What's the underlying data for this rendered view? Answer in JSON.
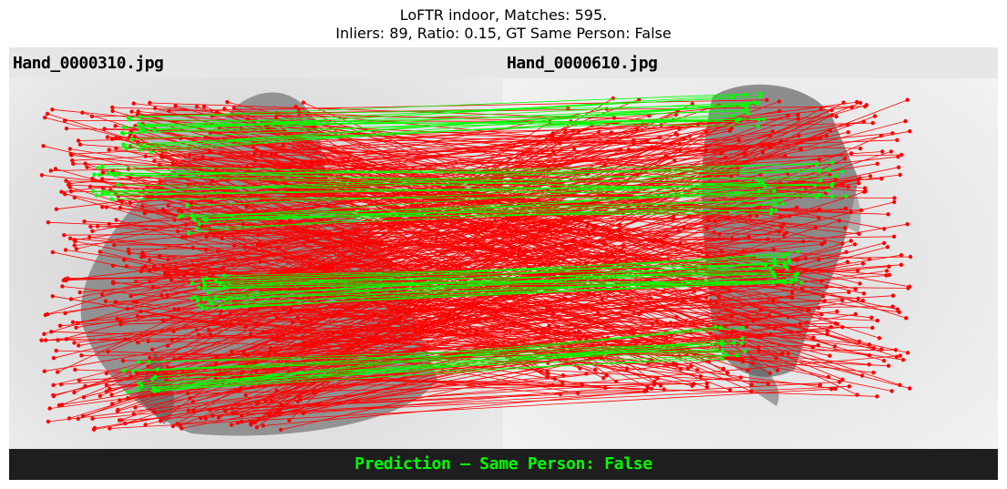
{
  "title_line1": "LoFTR indoor, Matches: 595.",
  "title_line2": "Inliers: 89, Ratio: 0.15, GT Same Person: False",
  "left_image": {
    "filename": "Hand_0000310.jpg"
  },
  "right_image": {
    "filename": "Hand_0000610.jpg"
  },
  "prediction_text": "Prediction — Same Person: False",
  "colors": {
    "outlier": "#ff0000",
    "inlier": "#00ff00",
    "prediction_text": "#00ff00",
    "footer_bg": "#1e1e1e",
    "label_bar_bg": "#e6e6e6"
  },
  "matches": {
    "total": 595,
    "inliers": 89
  }
}
